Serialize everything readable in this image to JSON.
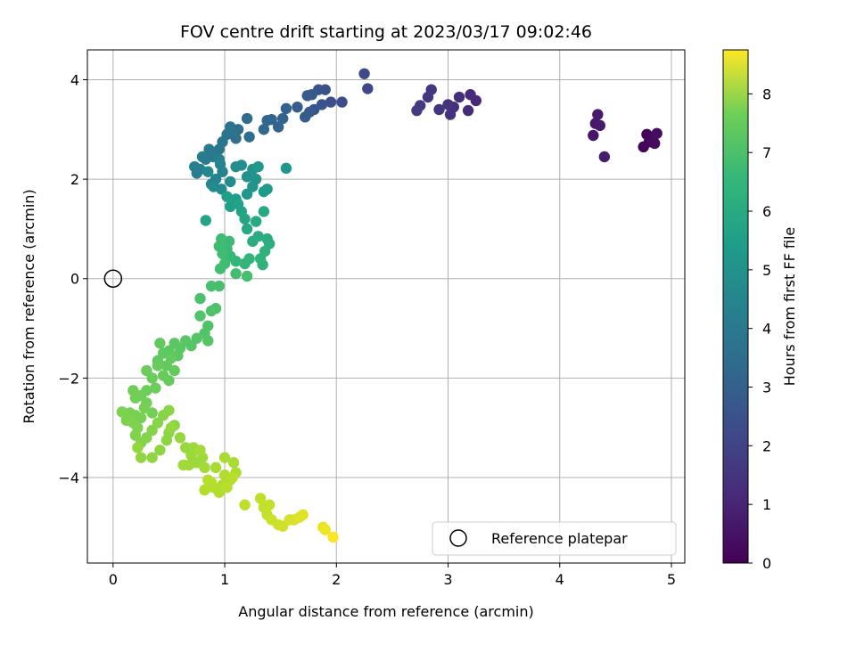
{
  "chart_data": {
    "type": "scatter",
    "title": "FOV centre drift starting at 2023/03/17 09:02:46",
    "xlabel": "Angular distance from reference (arcmin)",
    "ylabel": "Rotation from reference (arcmin)",
    "xlim": [
      -0.23,
      5.12
    ],
    "ylim": [
      -5.72,
      4.6
    ],
    "xticks": [
      0,
      1,
      2,
      3,
      4,
      5
    ],
    "yticks": [
      -4,
      -2,
      0,
      2,
      4
    ],
    "grid": true,
    "colormap": "viridis",
    "colorbar": {
      "label": "Hours from first FF file",
      "range": [
        0,
        8.75
      ],
      "ticks": [
        0,
        1,
        2,
        3,
        4,
        5,
        6,
        7,
        8
      ]
    },
    "reference_point": {
      "x": 0,
      "y": 0,
      "label": "Reference platepar"
    },
    "legend": {
      "position": "lower right",
      "entries": [
        "Reference platepar"
      ]
    },
    "points": [
      {
        "x": 4.75,
        "y": 2.65,
        "c": 0.05
      },
      {
        "x": 4.78,
        "y": 2.9,
        "c": 0.1
      },
      {
        "x": 4.8,
        "y": 2.75,
        "c": 0.15
      },
      {
        "x": 4.82,
        "y": 2.8,
        "c": 0.2
      },
      {
        "x": 4.85,
        "y": 2.72,
        "c": 0.25
      },
      {
        "x": 4.87,
        "y": 2.92,
        "c": 0.3
      },
      {
        "x": 4.3,
        "y": 2.88,
        "c": 0.5
      },
      {
        "x": 4.32,
        "y": 3.12,
        "c": 0.55
      },
      {
        "x": 4.34,
        "y": 3.3,
        "c": 0.6
      },
      {
        "x": 4.36,
        "y": 3.08,
        "c": 0.65
      },
      {
        "x": 4.4,
        "y": 2.45,
        "c": 0.7
      },
      {
        "x": 3.25,
        "y": 3.58,
        "c": 1.0
      },
      {
        "x": 3.2,
        "y": 3.7,
        "c": 1.05
      },
      {
        "x": 3.18,
        "y": 3.38,
        "c": 1.1
      },
      {
        "x": 3.1,
        "y": 3.65,
        "c": 1.15
      },
      {
        "x": 3.05,
        "y": 3.45,
        "c": 1.2
      },
      {
        "x": 3.02,
        "y": 3.3,
        "c": 1.25
      },
      {
        "x": 3.0,
        "y": 3.5,
        "c": 1.3
      },
      {
        "x": 2.92,
        "y": 3.4,
        "c": 1.35
      },
      {
        "x": 2.85,
        "y": 3.8,
        "c": 1.4
      },
      {
        "x": 2.82,
        "y": 3.65,
        "c": 1.45
      },
      {
        "x": 2.75,
        "y": 3.48,
        "c": 1.5
      },
      {
        "x": 2.72,
        "y": 3.38,
        "c": 1.55
      },
      {
        "x": 2.28,
        "y": 3.82,
        "c": 1.9
      },
      {
        "x": 2.25,
        "y": 4.12,
        "c": 1.95
      },
      {
        "x": 2.05,
        "y": 3.55,
        "c": 2.05
      },
      {
        "x": 1.95,
        "y": 3.55,
        "c": 2.15
      },
      {
        "x": 1.9,
        "y": 3.8,
        "c": 2.2
      },
      {
        "x": 1.87,
        "y": 3.5,
        "c": 2.25
      },
      {
        "x": 1.84,
        "y": 3.8,
        "c": 2.3
      },
      {
        "x": 1.8,
        "y": 3.4,
        "c": 2.35
      },
      {
        "x": 1.78,
        "y": 3.7,
        "c": 2.4
      },
      {
        "x": 1.76,
        "y": 3.35,
        "c": 2.45
      },
      {
        "x": 1.74,
        "y": 3.68,
        "c": 2.5
      },
      {
        "x": 1.72,
        "y": 3.25,
        "c": 2.55
      },
      {
        "x": 1.65,
        "y": 3.45,
        "c": 2.6
      },
      {
        "x": 1.55,
        "y": 3.42,
        "c": 2.7
      },
      {
        "x": 1.52,
        "y": 3.22,
        "c": 2.75
      },
      {
        "x": 1.48,
        "y": 3.05,
        "c": 2.8
      },
      {
        "x": 1.42,
        "y": 3.2,
        "c": 2.85
      },
      {
        "x": 1.38,
        "y": 3.18,
        "c": 2.9
      },
      {
        "x": 1.35,
        "y": 3.0,
        "c": 2.95
      },
      {
        "x": 1.2,
        "y": 3.22,
        "c": 3.05
      },
      {
        "x": 1.22,
        "y": 2.85,
        "c": 3.1
      },
      {
        "x": 1.12,
        "y": 3.0,
        "c": 3.15
      },
      {
        "x": 1.1,
        "y": 2.82,
        "c": 3.2
      },
      {
        "x": 1.07,
        "y": 2.95,
        "c": 3.25
      },
      {
        "x": 1.05,
        "y": 3.05,
        "c": 3.3
      },
      {
        "x": 1.02,
        "y": 2.9,
        "c": 3.35
      },
      {
        "x": 0.98,
        "y": 2.75,
        "c": 3.4
      },
      {
        "x": 0.95,
        "y": 2.6,
        "c": 3.45
      },
      {
        "x": 0.9,
        "y": 2.45,
        "c": 3.5
      },
      {
        "x": 0.86,
        "y": 2.6,
        "c": 3.55
      },
      {
        "x": 0.83,
        "y": 2.4,
        "c": 3.6
      },
      {
        "x": 0.8,
        "y": 2.45,
        "c": 3.65
      },
      {
        "x": 0.78,
        "y": 2.2,
        "c": 3.7
      },
      {
        "x": 0.75,
        "y": 2.12,
        "c": 3.75
      },
      {
        "x": 0.73,
        "y": 2.25,
        "c": 3.8
      },
      {
        "x": 0.95,
        "y": 2.4,
        "c": 3.85
      },
      {
        "x": 0.98,
        "y": 2.15,
        "c": 3.9
      },
      {
        "x": 0.96,
        "y": 2.3,
        "c": 3.95
      },
      {
        "x": 0.92,
        "y": 2.0,
        "c": 4.0
      },
      {
        "x": 0.88,
        "y": 1.9,
        "c": 4.05
      },
      {
        "x": 0.85,
        "y": 2.15,
        "c": 4.1
      },
      {
        "x": 0.9,
        "y": 1.85,
        "c": 4.15
      },
      {
        "x": 0.97,
        "y": 1.8,
        "c": 4.2
      },
      {
        "x": 1.05,
        "y": 1.95,
        "c": 4.25
      },
      {
        "x": 1.1,
        "y": 2.25,
        "c": 4.3
      },
      {
        "x": 1.15,
        "y": 2.28,
        "c": 4.35
      },
      {
        "x": 1.2,
        "y": 2.05,
        "c": 4.4
      },
      {
        "x": 1.25,
        "y": 2.2,
        "c": 4.45
      },
      {
        "x": 1.28,
        "y": 2.0,
        "c": 4.5
      },
      {
        "x": 1.25,
        "y": 1.85,
        "c": 4.55
      },
      {
        "x": 1.2,
        "y": 1.7,
        "c": 4.6
      },
      {
        "x": 1.3,
        "y": 2.25,
        "c": 4.65
      },
      {
        "x": 1.55,
        "y": 2.22,
        "c": 4.7
      },
      {
        "x": 1.35,
        "y": 1.75,
        "c": 4.75
      },
      {
        "x": 1.38,
        "y": 1.8,
        "c": 4.8
      },
      {
        "x": 1.1,
        "y": 1.6,
        "c": 4.85
      },
      {
        "x": 1.05,
        "y": 1.45,
        "c": 4.9
      },
      {
        "x": 1.02,
        "y": 1.65,
        "c": 4.95
      },
      {
        "x": 1.12,
        "y": 1.5,
        "c": 5.0
      },
      {
        "x": 1.15,
        "y": 1.35,
        "c": 5.05
      },
      {
        "x": 0.83,
        "y": 1.17,
        "c": 5.1
      },
      {
        "x": 1.18,
        "y": 1.2,
        "c": 5.15
      },
      {
        "x": 1.2,
        "y": 1.0,
        "c": 5.2
      },
      {
        "x": 1.28,
        "y": 1.15,
        "c": 5.25
      },
      {
        "x": 1.35,
        "y": 1.35,
        "c": 5.3
      },
      {
        "x": 1.3,
        "y": 0.85,
        "c": 5.35
      },
      {
        "x": 1.25,
        "y": 0.75,
        "c": 5.4
      },
      {
        "x": 1.38,
        "y": 0.8,
        "c": 5.45
      },
      {
        "x": 1.4,
        "y": 0.7,
        "c": 5.5
      },
      {
        "x": 1.36,
        "y": 0.55,
        "c": 5.55
      },
      {
        "x": 1.32,
        "y": 0.4,
        "c": 5.6
      },
      {
        "x": 1.34,
        "y": 0.28,
        "c": 5.65
      },
      {
        "x": 1.22,
        "y": 0.4,
        "c": 5.7
      },
      {
        "x": 1.18,
        "y": 0.3,
        "c": 5.75
      },
      {
        "x": 1.1,
        "y": 0.35,
        "c": 5.8
      },
      {
        "x": 1.05,
        "y": 0.45,
        "c": 5.85
      },
      {
        "x": 1.02,
        "y": 0.6,
        "c": 5.9
      },
      {
        "x": 1.04,
        "y": 0.75,
        "c": 5.95
      },
      {
        "x": 0.97,
        "y": 0.8,
        "c": 6.0
      },
      {
        "x": 0.95,
        "y": 0.65,
        "c": 6.02
      },
      {
        "x": 0.98,
        "y": 0.5,
        "c": 6.04
      },
      {
        "x": 1.0,
        "y": 0.3,
        "c": 6.06
      },
      {
        "x": 0.96,
        "y": 0.2,
        "c": 6.08
      },
      {
        "x": 1.1,
        "y": 0.1,
        "c": 6.1
      },
      {
        "x": 1.2,
        "y": 0.05,
        "c": 6.12
      },
      {
        "x": 0.95,
        "y": -0.15,
        "c": 6.15
      },
      {
        "x": 0.88,
        "y": -0.15,
        "c": 6.18
      },
      {
        "x": 0.78,
        "y": -0.4,
        "c": 6.2
      },
      {
        "x": 0.92,
        "y": -0.6,
        "c": 6.25
      },
      {
        "x": 0.88,
        "y": -0.65,
        "c": 6.28
      },
      {
        "x": 0.85,
        "y": -0.95,
        "c": 6.3
      },
      {
        "x": 0.78,
        "y": -0.75,
        "c": 6.32
      },
      {
        "x": 0.82,
        "y": -1.1,
        "c": 6.35
      },
      {
        "x": 0.85,
        "y": -1.25,
        "c": 6.38
      },
      {
        "x": 0.75,
        "y": -1.2,
        "c": 6.4
      },
      {
        "x": 0.7,
        "y": -1.35,
        "c": 6.42
      },
      {
        "x": 0.65,
        "y": -1.25,
        "c": 6.44
      },
      {
        "x": 0.6,
        "y": -1.4,
        "c": 6.46
      },
      {
        "x": 0.58,
        "y": -1.55,
        "c": 6.48
      },
      {
        "x": 0.55,
        "y": -1.3,
        "c": 6.5
      },
      {
        "x": 0.5,
        "y": -1.45,
        "c": 6.52
      },
      {
        "x": 0.45,
        "y": -1.5,
        "c": 6.54
      },
      {
        "x": 0.42,
        "y": -1.3,
        "c": 6.56
      },
      {
        "x": 0.4,
        "y": -1.65,
        "c": 6.58
      },
      {
        "x": 0.48,
        "y": -1.75,
        "c": 6.6
      },
      {
        "x": 0.52,
        "y": -1.6,
        "c": 6.62
      },
      {
        "x": 0.55,
        "y": -1.85,
        "c": 6.64
      },
      {
        "x": 0.5,
        "y": -2.05,
        "c": 6.66
      },
      {
        "x": 0.45,
        "y": -1.95,
        "c": 6.68
      },
      {
        "x": 0.4,
        "y": -1.75,
        "c": 6.7
      },
      {
        "x": 0.35,
        "y": -2.0,
        "c": 6.72
      },
      {
        "x": 0.3,
        "y": -1.85,
        "c": 6.74
      },
      {
        "x": 0.38,
        "y": -2.2,
        "c": 6.76
      },
      {
        "x": 0.3,
        "y": -2.25,
        "c": 6.78
      },
      {
        "x": 0.25,
        "y": -2.35,
        "c": 6.8
      },
      {
        "x": 0.18,
        "y": -2.25,
        "c": 6.82
      },
      {
        "x": 0.2,
        "y": -2.4,
        "c": 6.84
      },
      {
        "x": 0.3,
        "y": -2.5,
        "c": 6.86
      },
      {
        "x": 0.35,
        "y": -2.7,
        "c": 6.88
      },
      {
        "x": 0.28,
        "y": -2.6,
        "c": 6.9
      },
      {
        "x": 0.25,
        "y": -2.8,
        "c": 6.92
      },
      {
        "x": 0.2,
        "y": -2.75,
        "c": 6.94
      },
      {
        "x": 0.15,
        "y": -2.7,
        "c": 6.96
      },
      {
        "x": 0.08,
        "y": -2.68,
        "c": 6.98
      },
      {
        "x": 0.12,
        "y": -2.85,
        "c": 7.0
      },
      {
        "x": 0.18,
        "y": -2.9,
        "c": 7.02
      },
      {
        "x": 0.22,
        "y": -3.0,
        "c": 7.04
      },
      {
        "x": 0.2,
        "y": -3.15,
        "c": 7.06
      },
      {
        "x": 0.25,
        "y": -3.3,
        "c": 7.08
      },
      {
        "x": 0.3,
        "y": -3.2,
        "c": 7.1
      },
      {
        "x": 0.35,
        "y": -3.05,
        "c": 7.12
      },
      {
        "x": 0.4,
        "y": -2.9,
        "c": 7.14
      },
      {
        "x": 0.45,
        "y": -2.75,
        "c": 7.16
      },
      {
        "x": 0.5,
        "y": -2.65,
        "c": 7.18
      },
      {
        "x": 0.55,
        "y": -2.95,
        "c": 7.2
      },
      {
        "x": 0.5,
        "y": -3.1,
        "c": 7.22
      },
      {
        "x": 0.48,
        "y": -3.25,
        "c": 7.24
      },
      {
        "x": 0.42,
        "y": -3.45,
        "c": 7.26
      },
      {
        "x": 0.35,
        "y": -3.6,
        "c": 7.28
      },
      {
        "x": 0.25,
        "y": -3.6,
        "c": 7.3
      },
      {
        "x": 0.22,
        "y": -3.4,
        "c": 7.32
      },
      {
        "x": 0.52,
        "y": -3.0,
        "c": 7.34
      },
      {
        "x": 0.6,
        "y": -3.2,
        "c": 7.36
      },
      {
        "x": 0.65,
        "y": -3.4,
        "c": 7.38
      },
      {
        "x": 0.7,
        "y": -3.55,
        "c": 7.4
      },
      {
        "x": 0.72,
        "y": -3.4,
        "c": 7.42
      },
      {
        "x": 0.75,
        "y": -3.7,
        "c": 7.44
      },
      {
        "x": 0.8,
        "y": -3.6,
        "c": 7.46
      },
      {
        "x": 0.68,
        "y": -3.75,
        "c": 7.48
      },
      {
        "x": 0.63,
        "y": -3.75,
        "c": 7.5
      },
      {
        "x": 0.78,
        "y": -3.45,
        "c": 7.52
      },
      {
        "x": 0.82,
        "y": -3.8,
        "c": 7.55
      },
      {
        "x": 0.92,
        "y": -3.8,
        "c": 7.58
      },
      {
        "x": 1.0,
        "y": -3.6,
        "c": 7.6
      },
      {
        "x": 1.08,
        "y": -3.7,
        "c": 7.62
      },
      {
        "x": 1.1,
        "y": -3.9,
        "c": 7.64
      },
      {
        "x": 1.05,
        "y": -4.05,
        "c": 7.66
      },
      {
        "x": 1.0,
        "y": -3.95,
        "c": 7.68
      },
      {
        "x": 0.98,
        "y": -4.15,
        "c": 7.7
      },
      {
        "x": 0.9,
        "y": -4.2,
        "c": 7.72
      },
      {
        "x": 0.95,
        "y": -4.3,
        "c": 7.74
      },
      {
        "x": 0.88,
        "y": -4.1,
        "c": 7.76
      },
      {
        "x": 0.82,
        "y": -4.25,
        "c": 7.78
      },
      {
        "x": 0.85,
        "y": -4.05,
        "c": 7.8
      },
      {
        "x": 1.02,
        "y": -4.2,
        "c": 7.82
      },
      {
        "x": 1.07,
        "y": -4.0,
        "c": 7.84
      },
      {
        "x": 1.18,
        "y": -4.55,
        "c": 7.88
      },
      {
        "x": 1.32,
        "y": -4.42,
        "c": 7.92
      },
      {
        "x": 1.35,
        "y": -4.6,
        "c": 7.95
      },
      {
        "x": 1.4,
        "y": -4.55,
        "c": 7.98
      },
      {
        "x": 1.38,
        "y": -4.75,
        "c": 8.0
      },
      {
        "x": 1.42,
        "y": -4.85,
        "c": 8.05
      },
      {
        "x": 1.48,
        "y": -4.95,
        "c": 8.1
      },
      {
        "x": 1.52,
        "y": -4.98,
        "c": 8.15
      },
      {
        "x": 1.58,
        "y": -4.85,
        "c": 8.2
      },
      {
        "x": 1.62,
        "y": -4.85,
        "c": 8.25
      },
      {
        "x": 1.67,
        "y": -4.8,
        "c": 8.3
      },
      {
        "x": 1.7,
        "y": -4.75,
        "c": 8.35
      },
      {
        "x": 1.88,
        "y": -5.0,
        "c": 8.45
      },
      {
        "x": 1.9,
        "y": -5.05,
        "c": 8.55
      },
      {
        "x": 1.97,
        "y": -5.2,
        "c": 8.7
      }
    ]
  }
}
